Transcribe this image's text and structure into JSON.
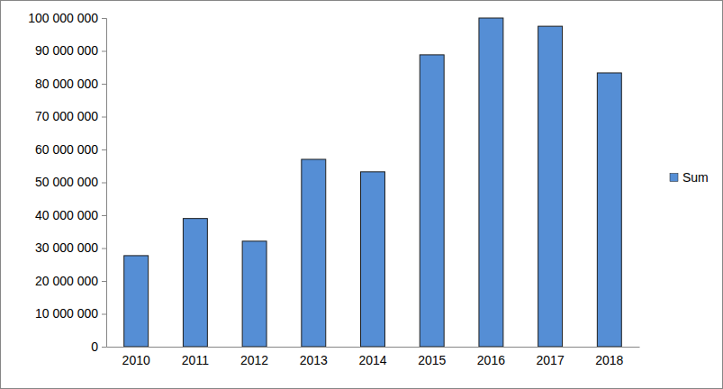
{
  "chart_data": {
    "type": "bar",
    "categories": [
      "2010",
      "2011",
      "2012",
      "2013",
      "2014",
      "2015",
      "2016",
      "2017",
      "2018"
    ],
    "series": [
      {
        "name": "Sum",
        "color": "#558ed5",
        "values": [
          27700000,
          39000000,
          32100000,
          57000000,
          53200000,
          88800000,
          100000000,
          97500000,
          83300000
        ]
      }
    ],
    "ylim": [
      0,
      100000000
    ],
    "yticks": [
      0,
      {
        "value": 10000000,
        "label": "10 000 000"
      },
      {
        "value": 20000000,
        "label": "20 000 000"
      },
      {
        "value": 30000000,
        "label": "30 000 000"
      },
      {
        "value": 40000000,
        "label": "40 000 000"
      },
      {
        "value": 50000000,
        "label": "50 000 000"
      },
      {
        "value": 60000000,
        "label": "60 000 000"
      },
      {
        "value": 70000000,
        "label": "70 000 000"
      },
      {
        "value": 80000000,
        "label": "80 000 000"
      },
      {
        "value": 90000000,
        "label": "90 000 000"
      },
      {
        "value": 100000000,
        "label": "100 000 000"
      }
    ],
    "grid": false,
    "legend": "right"
  }
}
